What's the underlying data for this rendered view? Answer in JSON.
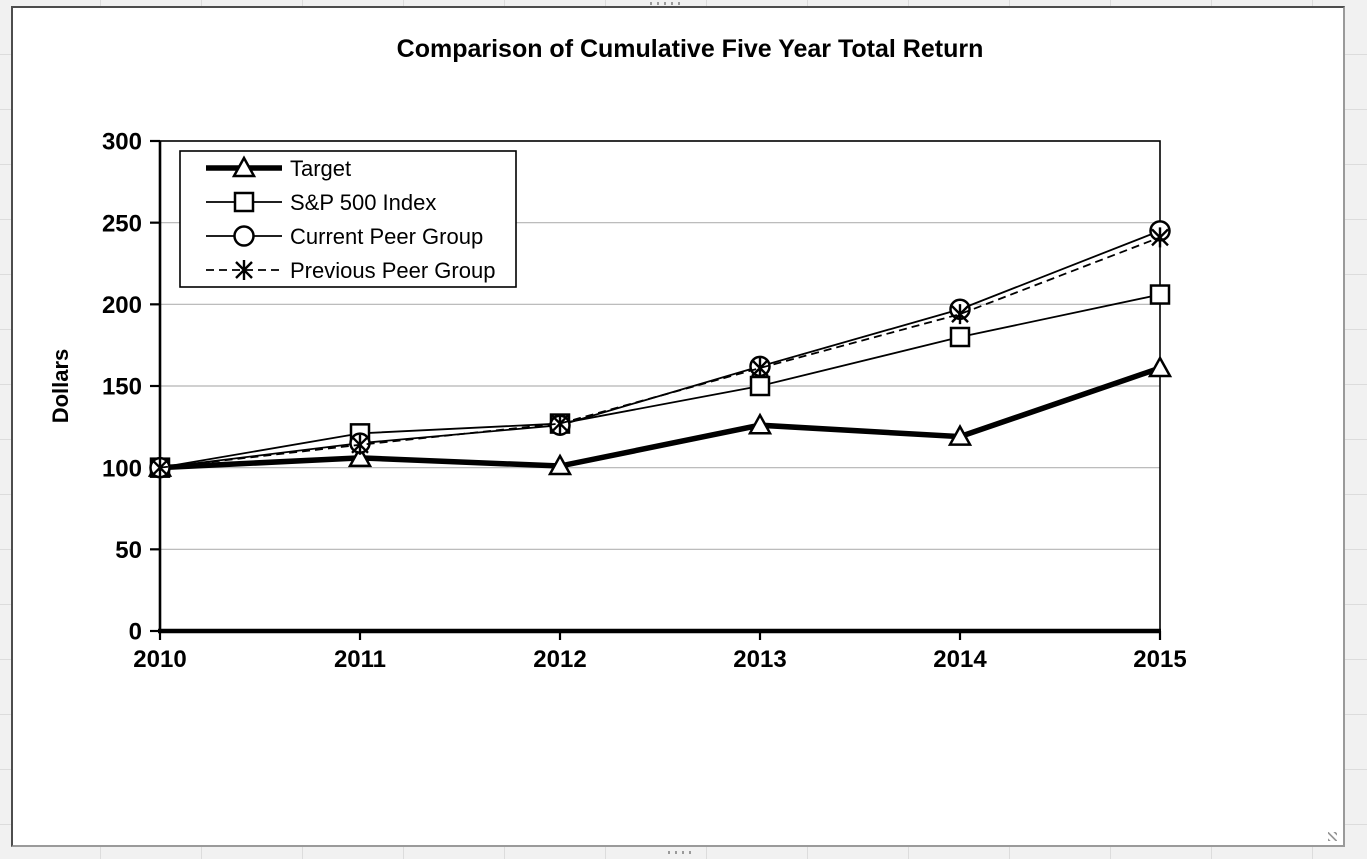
{
  "chart_data": {
    "type": "line",
    "title": "Comparison of Cumulative Five Year Total Return",
    "xlabel": "",
    "ylabel": "Dollars",
    "categories": [
      "2010",
      "2011",
      "2012",
      "2013",
      "2014",
      "2015"
    ],
    "ylim": [
      0,
      300
    ],
    "yticks": [
      0,
      50,
      100,
      150,
      200,
      250,
      300
    ],
    "grid": true,
    "legend_position": "top-left-inside",
    "series": [
      {
        "name": "Target",
        "marker": "triangle",
        "line_style": "thick-solid",
        "values": [
          100,
          106,
          101,
          126,
          119,
          161
        ]
      },
      {
        "name": "S&P 500 Index",
        "marker": "square",
        "line_style": "thin-solid",
        "values": [
          100,
          121,
          127,
          150,
          180,
          206
        ]
      },
      {
        "name": "Current Peer Group",
        "marker": "circle",
        "line_style": "thin-solid",
        "values": [
          100,
          115,
          126,
          162,
          197,
          245
        ]
      },
      {
        "name": "Previous Peer Group",
        "marker": "asterisk",
        "line_style": "dashed",
        "values": [
          100,
          114,
          127,
          161,
          194,
          241
        ]
      }
    ],
    "colors": {
      "series": "#000000",
      "gridline": "#b3b3b3",
      "plot_background": "#ffffff"
    }
  }
}
